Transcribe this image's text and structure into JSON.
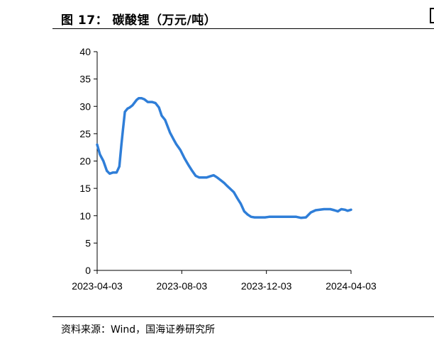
{
  "figure": {
    "title": "图 17：  碳酸锂（万元/吨）",
    "source": "资料来源：Wind，国海证券研究所"
  },
  "chart_data": {
    "type": "line",
    "title": "碳酸锂（万元/吨）",
    "xlabel": "",
    "ylabel": "",
    "x_ticks": [
      "2023-04-03",
      "2023-08-03",
      "2023-12-03",
      "2024-04-03"
    ],
    "y_ticks": [
      0,
      5,
      10,
      15,
      20,
      25,
      30,
      35,
      40
    ],
    "xlim": [
      "2023-04-03",
      "2024-04-03"
    ],
    "ylim": [
      0,
      40
    ],
    "grid": false,
    "legend": "none",
    "color": "#2f7ed8",
    "series": [
      {
        "x": [
          "2023-04-03",
          "2023-04-07",
          "2023-04-12",
          "2023-04-17",
          "2023-04-21",
          "2023-04-26",
          "2023-05-01",
          "2023-05-05",
          "2023-05-08",
          "2023-05-10",
          "2023-05-13",
          "2023-05-17",
          "2023-05-20",
          "2023-05-24",
          "2023-05-30",
          "2023-06-02",
          "2023-06-06",
          "2023-06-10",
          "2023-06-15",
          "2023-06-21",
          "2023-06-26",
          "2023-07-01",
          "2023-07-05",
          "2023-07-10",
          "2023-07-17",
          "2023-07-22",
          "2023-07-26",
          "2023-08-01",
          "2023-08-07",
          "2023-08-13",
          "2023-08-18",
          "2023-08-23",
          "2023-08-28",
          "2023-09-03",
          "2023-09-08",
          "2023-09-13",
          "2023-09-18",
          "2023-09-23",
          "2023-09-28",
          "2023-10-03",
          "2023-10-07",
          "2023-10-12",
          "2023-10-17",
          "2023-10-22",
          "2023-10-27",
          "2023-11-01",
          "2023-11-06",
          "2023-11-11",
          "2023-11-16",
          "2023-11-21",
          "2023-11-26",
          "2023-12-01",
          "2023-12-07",
          "2023-12-13",
          "2023-12-19",
          "2023-12-26",
          "2024-01-01",
          "2024-01-08",
          "2024-01-15",
          "2024-01-22",
          "2024-01-29",
          "2024-02-05",
          "2024-02-12",
          "2024-02-18",
          "2024-02-24",
          "2024-02-28",
          "2024-03-04",
          "2024-03-10",
          "2024-03-15",
          "2024-03-20",
          "2024-03-25",
          "2024-03-29",
          "2024-04-03"
        ],
        "values": [
          23.0,
          21.2,
          20.0,
          18.2,
          17.7,
          17.9,
          17.9,
          19.0,
          23.0,
          25.5,
          29.0,
          29.6,
          29.8,
          30.2,
          31.2,
          31.5,
          31.5,
          31.3,
          30.8,
          30.8,
          30.6,
          29.8,
          28.3,
          27.5,
          25.2,
          24.0,
          23.1,
          22.0,
          20.5,
          19.2,
          18.2,
          17.3,
          17.0,
          17.0,
          17.0,
          17.2,
          17.4,
          17.0,
          16.5,
          16.0,
          15.5,
          14.9,
          14.3,
          13.2,
          12.2,
          10.8,
          10.2,
          9.8,
          9.7,
          9.7,
          9.7,
          9.7,
          9.8,
          9.8,
          9.8,
          9.8,
          9.8,
          9.8,
          9.8,
          9.6,
          9.7,
          10.6,
          11.0,
          11.1,
          11.2,
          11.2,
          11.2,
          11.0,
          10.8,
          11.2,
          11.1,
          10.9,
          11.1
        ]
      }
    ]
  }
}
